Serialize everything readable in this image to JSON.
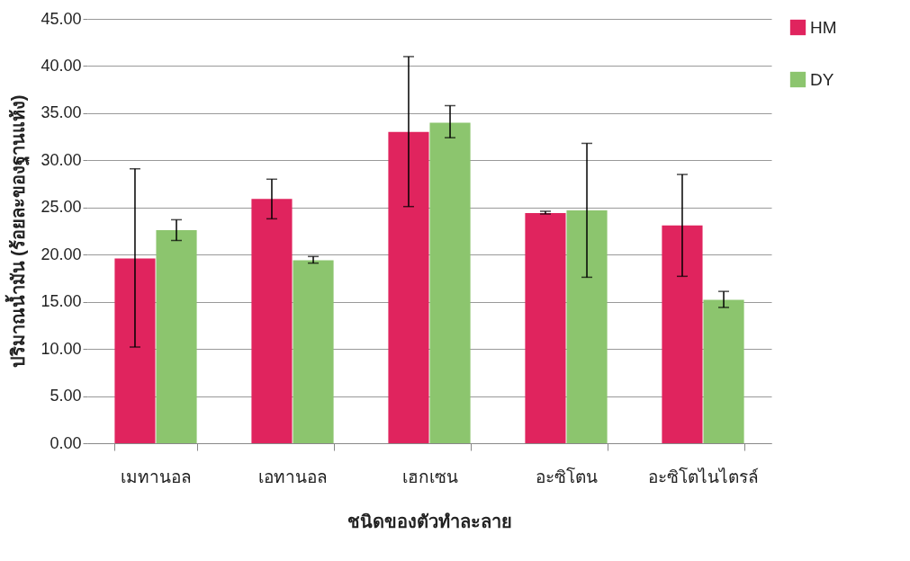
{
  "chart_data": {
    "type": "bar",
    "xlabel": "ชนิดของตัวทำละลาย",
    "ylabel": "ปริมาณน้ำมัน (ร้อยละของฐานแห้ง)",
    "categories": [
      "เมทานอล",
      "เอทานอล",
      "เฮกเซน",
      "อะซิโตน",
      "อะซิโตไนไตรล์"
    ],
    "series": [
      {
        "name": "HM",
        "color": "#e0245e",
        "values": [
          19.6,
          25.9,
          33.0,
          24.4,
          23.1
        ],
        "errors": [
          [
            10.2,
            29.1
          ],
          [
            23.8,
            28.0
          ],
          [
            25.1,
            41.0
          ],
          [
            24.3,
            24.6
          ],
          [
            17.7,
            28.5
          ]
        ]
      },
      {
        "name": "DY",
        "color": "#8cc56e",
        "values": [
          22.6,
          19.4,
          34.0,
          24.7,
          15.2
        ],
        "errors": [
          [
            21.5,
            23.7
          ],
          [
            19.1,
            19.8
          ],
          [
            32.4,
            35.8
          ],
          [
            17.6,
            31.8
          ],
          [
            14.4,
            16.1
          ]
        ]
      }
    ],
    "ylim": [
      0,
      45
    ],
    "yticks": [
      {
        "value": 0,
        "label": "0.00"
      },
      {
        "value": 5,
        "label": "5.00"
      },
      {
        "value": 10,
        "label": "10.00"
      },
      {
        "value": 15,
        "label": "15.00"
      },
      {
        "value": 20,
        "label": "20.00"
      },
      {
        "value": 25,
        "label": "25.00"
      },
      {
        "value": 30,
        "label": "30.00"
      },
      {
        "value": 35,
        "label": "35.00"
      },
      {
        "value": 40,
        "label": "40.00"
      },
      {
        "value": 45,
        "label": "45.00"
      }
    ],
    "grid": "y",
    "legend": "right"
  }
}
